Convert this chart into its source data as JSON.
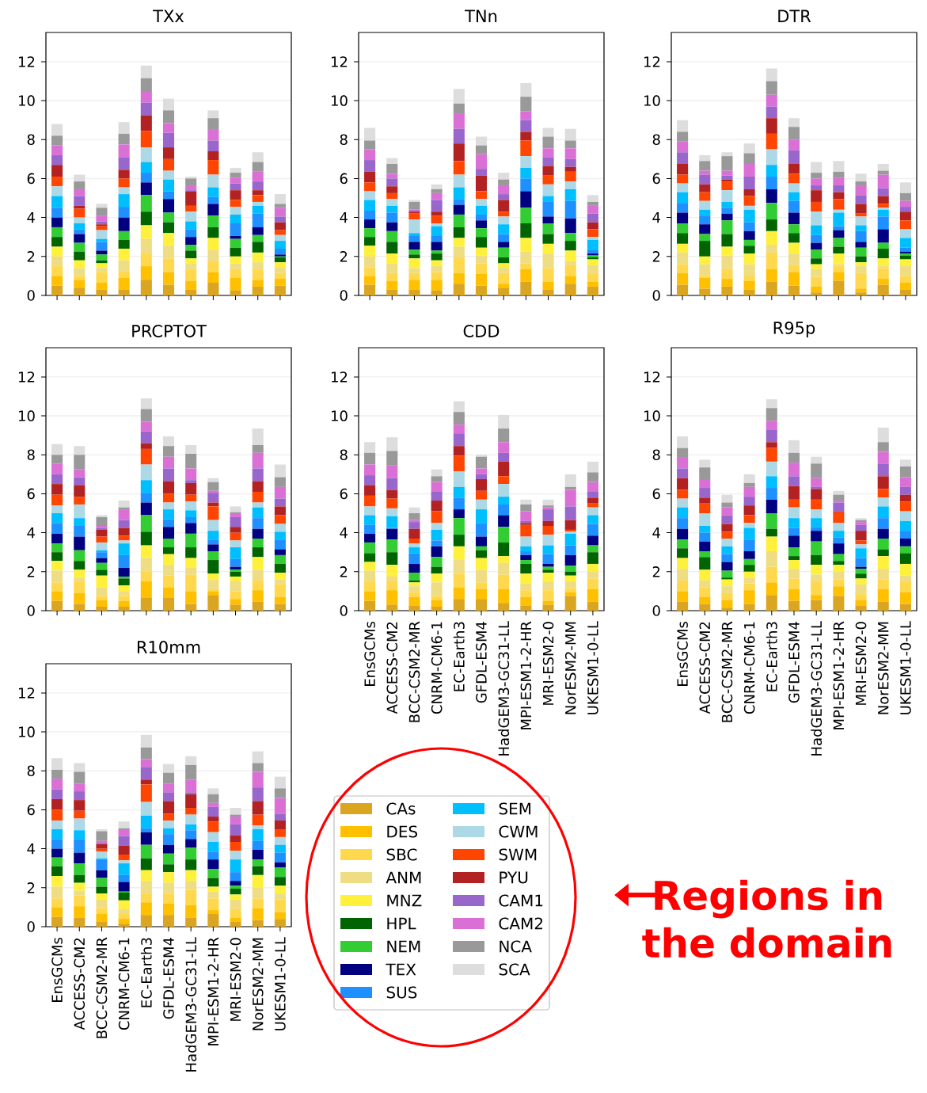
{
  "chart_data": [
    {
      "type": "bar",
      "title": "TXx",
      "stacked": true,
      "grid": "y",
      "ylim": [
        0,
        13.5
      ],
      "yticks": [
        0,
        2,
        4,
        6,
        8,
        10,
        12
      ],
      "categories": [
        null,
        null,
        null,
        null,
        null,
        null,
        null,
        null,
        null,
        null,
        null
      ],
      "series": [
        {
          "color": "#daa520",
          "values": [
            0.5,
            0.4,
            0.3,
            0.3,
            0.8,
            0.55,
            0.3,
            0.65,
            0.25,
            0.45,
            0.5
          ]
        },
        {
          "color": "#ffc000",
          "values": [
            0.5,
            0.4,
            0.35,
            0.6,
            0.7,
            0.65,
            0.45,
            0.55,
            0.65,
            0.35,
            0.35
          ]
        },
        {
          "color": "#ffd84d",
          "values": [
            0.5,
            0.2,
            0.55,
            0.35,
            0.65,
            0.7,
            0.55,
            0.55,
            0.45,
            0.5,
            0.3
          ]
        },
        {
          "color": "#eedd82",
          "values": [
            0.5,
            0.4,
            0.2,
            0.55,
            0.75,
            0.65,
            0.35,
            0.6,
            0.3,
            0.4,
            0.3
          ]
        },
        {
          "color": "#fff03c",
          "values": [
            0.5,
            0.4,
            0.25,
            0.6,
            0.7,
            0.65,
            0.25,
            0.6,
            0.35,
            0.5,
            0.25
          ]
        },
        {
          "color": "#006400",
          "values": [
            0.5,
            0.45,
            0.15,
            0.45,
            0.7,
            0.55,
            0.4,
            0.55,
            0.45,
            0.55,
            0.25
          ]
        },
        {
          "color": "#32cd32",
          "values": [
            0.5,
            0.45,
            0.3,
            0.45,
            0.85,
            0.5,
            0.3,
            0.6,
            0.45,
            0.35,
            0.05
          ]
        },
        {
          "color": "#000080",
          "values": [
            0.5,
            0.45,
            0.2,
            0.7,
            0.65,
            0.7,
            0.4,
            0.6,
            0.15,
            0.4,
            0.1
          ]
        },
        {
          "color": "#1e90ff",
          "values": [
            0.5,
            0.25,
            0.45,
            0.55,
            0.5,
            0.4,
            0.4,
            0.35,
            0.65,
            0.7,
            0.3
          ]
        },
        {
          "color": "#00bfff",
          "values": [
            0.6,
            0.3,
            0.15,
            0.65,
            0.55,
            0.6,
            0.4,
            0.5,
            0.45,
            0.4,
            0.4
          ]
        },
        {
          "color": "#add8e6",
          "values": [
            0.5,
            0.3,
            0.45,
            0.35,
            0.75,
            0.45,
            0.5,
            0.65,
            0.4,
            0.2,
            0.3
          ]
        },
        {
          "color": "#ff4500",
          "values": [
            0.5,
            0.45,
            0.2,
            0.45,
            0.85,
            0.6,
            0.3,
            0.75,
            0.35,
            0.35,
            0.25
          ]
        },
        {
          "color": "#b22222",
          "values": [
            0.6,
            0.15,
            0.1,
            0.45,
            0.8,
            0.6,
            0.75,
            0.45,
            0.5,
            0.25,
            0.4
          ]
        },
        {
          "color": "#9966cc",
          "values": [
            0.5,
            0.5,
            0.15,
            0.65,
            0.65,
            0.75,
            0.05,
            0.55,
            0.35,
            0.45,
            0.3
          ]
        },
        {
          "color": "#da70d6",
          "values": [
            0.5,
            0.35,
            0.3,
            0.65,
            0.55,
            0.5,
            0.25,
            0.55,
            0.3,
            0.5,
            0.45
          ]
        },
        {
          "color": "#999999",
          "values": [
            0.5,
            0.4,
            0.4,
            0.55,
            0.7,
            0.65,
            0.35,
            0.6,
            0.25,
            0.5,
            0.2
          ]
        },
        {
          "color": "#dddddd",
          "values": [
            0.6,
            0.35,
            0.2,
            0.6,
            0.65,
            0.6,
            0.1,
            0.4,
            0.25,
            0.5,
            0.5
          ]
        }
      ]
    },
    {
      "type": "bar",
      "title": "TNn",
      "stacked": true,
      "grid": "y",
      "ylim": [
        0,
        13.5
      ],
      "yticks": [
        0,
        2,
        4,
        6,
        8,
        10,
        12
      ],
      "categories": [
        null,
        null,
        null,
        null,
        null,
        null,
        null,
        null,
        null,
        null,
        null
      ],
      "series": [
        {
          "color": "#daa520",
          "values": [
            0.55,
            0.3,
            0.3,
            0.25,
            0.6,
            0.5,
            0.4,
            0.7,
            0.3,
            0.6,
            0.45
          ]
        },
        {
          "color": "#ffc000",
          "values": [
            0.45,
            0.45,
            0.5,
            0.55,
            0.55,
            0.6,
            0.2,
            0.65,
            0.4,
            0.4,
            0.25
          ]
        },
        {
          "color": "#ffd84d",
          "values": [
            0.45,
            0.4,
            0.35,
            0.4,
            0.8,
            0.55,
            0.55,
            0.3,
            0.7,
            0.55,
            0.4
          ]
        },
        {
          "color": "#eedd82",
          "values": [
            0.55,
            0.5,
            0.25,
            0.3,
            0.55,
            0.4,
            0.3,
            0.6,
            0.75,
            0.2,
            0.45
          ]
        },
        {
          "color": "#fff03c",
          "values": [
            0.55,
            0.5,
            0.5,
            0.3,
            0.45,
            0.4,
            0.2,
            0.7,
            0.5,
            0.55,
            0.3
          ]
        },
        {
          "color": "#006400",
          "values": [
            0.45,
            0.6,
            0.2,
            0.35,
            0.55,
            0.55,
            0.3,
            0.75,
            0.5,
            0.5,
            0.1
          ]
        },
        {
          "color": "#32cd32",
          "values": [
            0.45,
            0.55,
            0.25,
            0.15,
            0.65,
            0.45,
            0.5,
            0.8,
            0.55,
            0.4,
            0.1
          ]
        },
        {
          "color": "#000080",
          "values": [
            0.45,
            0.45,
            0.4,
            0.45,
            0.5,
            0.4,
            0.3,
            0.85,
            0.35,
            0.75,
            0.1
          ]
        },
        {
          "color": "#1e90ff",
          "values": [
            0.45,
            0.5,
            0.3,
            0.3,
            0.3,
            0.3,
            0.4,
            0.65,
            0.75,
            0.9,
            0.2
          ]
        },
        {
          "color": "#00bfff",
          "values": [
            0.55,
            0.35,
            0.15,
            0.5,
            0.6,
            0.45,
            0.5,
            0.55,
            0.3,
            0.6,
            0.5
          ]
        },
        {
          "color": "#add8e6",
          "values": [
            0.45,
            0.35,
            0.7,
            0.15,
            0.65,
            0.35,
            0.4,
            0.6,
            0.6,
            0.4,
            0.15
          ]
        },
        {
          "color": "#ff4500",
          "values": [
            0.45,
            0.3,
            0.3,
            0.4,
            0.7,
            0.4,
            0.25,
            0.8,
            0.45,
            0.5,
            0.4
          ]
        },
        {
          "color": "#b22222",
          "values": [
            0.55,
            0.35,
            0.1,
            0.2,
            0.9,
            0.8,
            0.6,
            0.45,
            0.5,
            0.25,
            0.35
          ]
        },
        {
          "color": "#9966cc",
          "values": [
            0.6,
            0.4,
            0.05,
            0.6,
            0.75,
            0.35,
            0.3,
            0.6,
            0.45,
            0.4,
            0.45
          ]
        },
        {
          "color": "#da70d6",
          "values": [
            0.55,
            0.25,
            0.05,
            0.35,
            0.8,
            0.75,
            0.45,
            0.45,
            0.45,
            0.55,
            0.4
          ]
        },
        {
          "color": "#999999",
          "values": [
            0.45,
            0.5,
            0.4,
            0.2,
            0.5,
            0.45,
            0.3,
            0.75,
            0.6,
            0.4,
            0.2
          ]
        },
        {
          "color": "#dddddd",
          "values": [
            0.65,
            0.3,
            0.1,
            0.25,
            0.75,
            0.45,
            0.35,
            0.7,
            0.45,
            0.6,
            0.35
          ]
        }
      ]
    },
    {
      "type": "bar",
      "title": "DTR",
      "stacked": true,
      "grid": "y",
      "ylim": [
        0,
        13.5
      ],
      "yticks": [
        0,
        2,
        4,
        6,
        8,
        10,
        12
      ],
      "categories": [
        null,
        null,
        null,
        null,
        null,
        null,
        null,
        null,
        null,
        null,
        null
      ],
      "series": [
        {
          "color": "#daa520",
          "values": [
            0.55,
            0.35,
            0.45,
            0.3,
            0.7,
            0.5,
            0.15,
            0.75,
            0.15,
            0.55,
            0.3
          ]
        },
        {
          "color": "#ffc000",
          "values": [
            0.6,
            0.55,
            0.4,
            0.45,
            0.65,
            0.7,
            0.3,
            0.45,
            0.2,
            0.3,
            0.35
          ]
        },
        {
          "color": "#ffd84d",
          "values": [
            0.45,
            0.1,
            0.5,
            0.3,
            0.85,
            0.35,
            0.5,
            0.3,
            0.8,
            0.55,
            0.35
          ]
        },
        {
          "color": "#eedd82",
          "values": [
            0.6,
            0.6,
            0.7,
            0.55,
            0.4,
            0.6,
            0.4,
            0.1,
            0.35,
            0.1,
            0.5
          ]
        },
        {
          "color": "#fff03c",
          "values": [
            0.45,
            0.4,
            0.45,
            0.55,
            0.7,
            0.55,
            0.25,
            0.55,
            0.2,
            0.4,
            0.35
          ]
        },
        {
          "color": "#006400",
          "values": [
            0.55,
            0.8,
            0.65,
            0.4,
            0.6,
            0.5,
            0.3,
            0.35,
            0.3,
            0.5,
            0.2
          ]
        },
        {
          "color": "#32cd32",
          "values": [
            0.5,
            0.35,
            0.7,
            0.3,
            0.85,
            0.45,
            0.45,
            0.45,
            0.45,
            0.3,
            0.1
          ]
        },
        {
          "color": "#000080",
          "values": [
            0.55,
            0.5,
            0.35,
            0.45,
            0.7,
            0.6,
            0.35,
            0.4,
            0.3,
            0.7,
            0.1
          ]
        },
        {
          "color": "#1e90ff",
          "values": [
            0.5,
            0.45,
            0.3,
            0.45,
            0.65,
            0.6,
            0.4,
            0.2,
            0.55,
            0.65,
            0.2
          ]
        },
        {
          "color": "#00bfff",
          "values": [
            0.55,
            0.3,
            0.3,
            0.65,
            0.6,
            0.45,
            0.5,
            0.7,
            0.3,
            0.35,
            0.5
          ]
        },
        {
          "color": "#add8e6",
          "values": [
            0.45,
            0.45,
            0.6,
            0.2,
            0.8,
            0.45,
            0.7,
            0.15,
            0.45,
            0.1,
            0.45
          ]
        },
        {
          "color": "#ff4500",
          "values": [
            0.45,
            0.45,
            0.45,
            0.5,
            0.8,
            0.5,
            0.5,
            0.55,
            0.15,
            0.2,
            0.45
          ]
        },
        {
          "color": "#b22222",
          "values": [
            0.55,
            0.4,
            0.1,
            0.35,
            0.8,
            0.5,
            0.6,
            0.35,
            0.5,
            0.4,
            0.45
          ]
        },
        {
          "color": "#9966cc",
          "values": [
            0.6,
            0.5,
            0.2,
            0.65,
            0.6,
            0.7,
            0.25,
            0.35,
            0.45,
            0.4,
            0.25
          ]
        },
        {
          "color": "#da70d6",
          "values": [
            0.55,
            0.2,
            0.25,
            0.65,
            0.6,
            0.55,
            0.35,
            0.4,
            0.5,
            0.7,
            0.3
          ]
        },
        {
          "color": "#999999",
          "values": [
            0.5,
            0.5,
            0.75,
            0.55,
            0.7,
            0.65,
            0.3,
            0.3,
            0.2,
            0.2,
            0.4
          ]
        },
        {
          "color": "#dddddd",
          "values": [
            0.6,
            0.3,
            0.2,
            0.5,
            0.65,
            0.45,
            0.55,
            0.55,
            0.4,
            0.35,
            0.55
          ]
        }
      ]
    },
    {
      "type": "bar",
      "title": "PRCPTOT",
      "stacked": true,
      "grid": "y",
      "ylim": [
        0,
        13.5
      ],
      "yticks": [
        0,
        2,
        4,
        6,
        8,
        10,
        12
      ],
      "categories": [
        null,
        null,
        null,
        null,
        null,
        null,
        null,
        null,
        null,
        null,
        null
      ],
      "series": [
        {
          "color": "#daa520",
          "values": [
            0.5,
            0.35,
            0.2,
            0.2,
            0.65,
            0.65,
            0.35,
            0.8,
            0.3,
            0.45,
            0.35
          ]
        },
        {
          "color": "#ffc000",
          "values": [
            0.5,
            0.55,
            0.35,
            0.3,
            0.85,
            0.55,
            0.65,
            0.2,
            0.3,
            0.6,
            0.35
          ]
        },
        {
          "color": "#ffd84d",
          "values": [
            0.45,
            0.6,
            0.2,
            0.25,
            0.5,
            0.6,
            0.85,
            0.1,
            0.4,
            0.5,
            0.65
          ]
        },
        {
          "color": "#eedd82",
          "values": [
            0.6,
            0.2,
            0.45,
            0.25,
            0.7,
            0.55,
            0.35,
            0.5,
            0.5,
            0.55,
            0.25
          ]
        },
        {
          "color": "#fff03c",
          "values": [
            0.5,
            0.4,
            0.6,
            0.3,
            0.65,
            0.55,
            0.5,
            0.3,
            0.25,
            0.65,
            0.35
          ]
        },
        {
          "color": "#006400",
          "values": [
            0.45,
            0.45,
            0.3,
            0.35,
            0.7,
            0.35,
            0.55,
            0.7,
            0.25,
            0.5,
            0.45
          ]
        },
        {
          "color": "#32cd32",
          "values": [
            0.45,
            0.55,
            0.35,
            0.1,
            0.85,
            0.45,
            0.7,
            0.45,
            0.1,
            0.45,
            0.45
          ]
        },
        {
          "color": "#000080",
          "values": [
            0.5,
            0.7,
            0.25,
            0.45,
            0.65,
            0.6,
            0.55,
            0.35,
            0.15,
            0.5,
            0.3
          ]
        },
        {
          "color": "#1e90ff",
          "values": [
            0.55,
            0.55,
            0.3,
            0.65,
            0.5,
            0.4,
            0.3,
            0.25,
            0.4,
            0.55,
            0.5
          ]
        },
        {
          "color": "#00bfff",
          "values": [
            0.5,
            0.4,
            0.1,
            0.6,
            0.65,
            0.5,
            0.35,
            0.45,
            0.6,
            0.55,
            0.4
          ]
        },
        {
          "color": "#add8e6",
          "values": [
            0.4,
            0.7,
            0.4,
            0.15,
            0.8,
            0.35,
            0.45,
            0.55,
            0.35,
            0.25,
            0.4
          ]
        },
        {
          "color": "#ff4500",
          "values": [
            0.55,
            0.4,
            0.3,
            0.25,
            0.8,
            0.45,
            0.35,
            0.7,
            0.4,
            0.55,
            0.45
          ]
        },
        {
          "color": "#b22222",
          "values": [
            0.55,
            0.6,
            0.35,
            0.4,
            0.3,
            0.65,
            0.6,
            0.2,
            0.3,
            0.55,
            0.45
          ]
        },
        {
          "color": "#9966cc",
          "values": [
            0.5,
            0.4,
            0.1,
            0.4,
            0.6,
            0.65,
            0.15,
            0.5,
            0.5,
            0.65,
            0.4
          ]
        },
        {
          "color": "#da70d6",
          "values": [
            0.55,
            0.4,
            0.1,
            0.55,
            0.5,
            0.6,
            0.6,
            0.1,
            0.2,
            0.8,
            0.6
          ]
        },
        {
          "color": "#999999",
          "values": [
            0.45,
            0.75,
            0.45,
            0.1,
            0.65,
            0.55,
            0.75,
            0.45,
            0.05,
            0.4,
            0.5
          ]
        },
        {
          "color": "#dddddd",
          "values": [
            0.55,
            0.45,
            0.1,
            0.35,
            0.55,
            0.5,
            0.45,
            0.2,
            0.3,
            0.85,
            0.65
          ]
        }
      ]
    },
    {
      "type": "bar",
      "title": "CDD",
      "stacked": true,
      "grid": "y",
      "ylim": [
        0,
        13.5
      ],
      "yticks": [
        0,
        2,
        4,
        6,
        8,
        10,
        12
      ],
      "categories": [
        "EnsGCMs",
        "ACCESS-CM2",
        "BCC-CSM2-MR",
        "CNRM-CM6-1",
        "EC-Earth3",
        "GFDL-ESM4",
        "HadGEM3-GC31-LL",
        "MPI-ESM1-2-HR",
        "MRI-ESM2-0",
        "NorESM2-MM",
        "UKESM1-0-LL"
      ],
      "series": [
        {
          "color": "#daa520",
          "values": [
            0.5,
            0.3,
            0.25,
            0.2,
            0.6,
            0.6,
            0.4,
            0.25,
            0.3,
            0.75,
            0.45
          ]
        },
        {
          "color": "#ffc000",
          "values": [
            0.5,
            0.75,
            0.45,
            0.35,
            0.6,
            0.5,
            0.7,
            0.45,
            0.2,
            0.2,
            0.65
          ]
        },
        {
          "color": "#ffd84d",
          "values": [
            0.5,
            0.5,
            0.25,
            0.2,
            0.7,
            0.35,
            0.75,
            0.35,
            0.55,
            0.2,
            0.55
          ]
        },
        {
          "color": "#eedd82",
          "values": [
            0.55,
            0.2,
            0.3,
            0.7,
            0.7,
            0.65,
            0.6,
            0.35,
            0.45,
            0.35,
            0.35
          ]
        },
        {
          "color": "#fff03c",
          "values": [
            0.45,
            0.6,
            0.2,
            0.45,
            0.7,
            0.6,
            0.35,
            0.5,
            0.45,
            0.3,
            0.4
          ]
        },
        {
          "color": "#006400",
          "values": [
            0.45,
            0.65,
            0.1,
            0.35,
            0.6,
            0.4,
            0.7,
            0.5,
            0.15,
            0.2,
            0.6
          ]
        },
        {
          "color": "#32cd32",
          "values": [
            0.55,
            0.65,
            0.4,
            0.5,
            0.85,
            0.2,
            0.8,
            0.2,
            0.15,
            0.3,
            0.35
          ]
        },
        {
          "color": "#000080",
          "values": [
            0.45,
            0.55,
            0.45,
            0.55,
            0.45,
            0.5,
            0.6,
            0.25,
            0.15,
            0.55,
            0.5
          ]
        },
        {
          "color": "#1e90ff",
          "values": [
            0.45,
            0.05,
            0.55,
            0.3,
            0.6,
            0.7,
            0.55,
            0.2,
            0.5,
            0.5,
            0.6
          ]
        },
        {
          "color": "#00bfff",
          "values": [
            0.5,
            0.6,
            0.3,
            0.55,
            0.55,
            0.7,
            0.4,
            0.25,
            0.45,
            0.6,
            0.45
          ]
        },
        {
          "color": "#add8e6",
          "values": [
            0.45,
            0.4,
            0.2,
            0.35,
            0.8,
            0.5,
            0.65,
            0.5,
            0.55,
            0.1,
            0.4
          ]
        },
        {
          "color": "#ff4500",
          "values": [
            0.55,
            0.5,
            0.25,
            0.6,
            0.8,
            0.45,
            0.4,
            0.6,
            0.45,
            0.1,
            0.2
          ]
        },
        {
          "color": "#b22222",
          "values": [
            0.55,
            0.45,
            0.5,
            0.55,
            0.5,
            0.6,
            0.75,
            0.1,
            0.25,
            0.5,
            0.3
          ]
        },
        {
          "color": "#9966cc",
          "values": [
            0.5,
            0.6,
            0.35,
            0.45,
            0.65,
            0.25,
            0.45,
            0.1,
            0.6,
            0.7,
            0.3
          ]
        },
        {
          "color": "#da70d6",
          "values": [
            0.55,
            0.65,
            0.1,
            0.5,
            0.45,
            0.3,
            0.55,
            0.5,
            0.1,
            0.85,
            0.5
          ]
        },
        {
          "color": "#999999",
          "values": [
            0.6,
            0.75,
            0.35,
            0.3,
            0.65,
            0.6,
            0.7,
            0.35,
            0.1,
            0.15,
            0.5
          ]
        },
        {
          "color": "#dddddd",
          "values": [
            0.55,
            0.7,
            0.3,
            0.35,
            0.55,
            0.1,
            0.7,
            0.25,
            0.3,
            0.65,
            0.55
          ]
        }
      ]
    },
    {
      "type": "bar",
      "title": "R95p",
      "stacked": true,
      "grid": "y",
      "ylim": [
        0,
        13.5
      ],
      "yticks": [
        0,
        2,
        4,
        6,
        8,
        10,
        12
      ],
      "categories": [
        "EnsGCMs",
        "ACCESS-CM2",
        "BCC-CSM2-MR",
        "CNRM-CM6-1",
        "EC-Earth3",
        "GFDL-ESM4",
        "HadGEM3-GC31-LL",
        "MPI-ESM1-2-HR",
        "MRI-ESM2-0",
        "NorESM2-MM",
        "UKESM1-0-LL"
      ],
      "series": [
        {
          "color": "#daa520",
          "values": [
            0.45,
            0.35,
            0.15,
            0.35,
            0.8,
            0.5,
            0.55,
            0.75,
            0.25,
            0.45,
            0.35
          ]
        },
        {
          "color": "#ffc000",
          "values": [
            0.55,
            0.35,
            0.4,
            0.7,
            0.65,
            0.6,
            0.25,
            0.5,
            0.3,
            0.65,
            0.6
          ]
        },
        {
          "color": "#ffd84d",
          "values": [
            0.55,
            0.5,
            0.35,
            0.35,
            0.8,
            0.55,
            0.7,
            0.35,
            0.3,
            0.5,
            0.55
          ]
        },
        {
          "color": "#eedd82",
          "values": [
            0.6,
            0.35,
            0.35,
            0.3,
            0.8,
            0.5,
            0.35,
            0.4,
            0.5,
            0.55,
            0.3
          ]
        },
        {
          "color": "#fff03c",
          "values": [
            0.55,
            0.55,
            0.35,
            0.3,
            0.75,
            0.45,
            0.5,
            0.35,
            0.3,
            0.65,
            0.6
          ]
        },
        {
          "color": "#006400",
          "values": [
            0.5,
            0.65,
            0.1,
            0.35,
            0.4,
            0.2,
            0.5,
            0.2,
            0.25,
            0.35,
            0.55
          ]
        },
        {
          "color": "#32cd32",
          "values": [
            0.45,
            0.3,
            0.35,
            0.3,
            0.8,
            0.45,
            0.7,
            0.35,
            0.25,
            0.55,
            0.35
          ]
        },
        {
          "color": "#000080",
          "values": [
            0.55,
            0.5,
            0.45,
            0.4,
            0.7,
            0.6,
            0.55,
            0.55,
            0.1,
            0.5,
            0.4
          ]
        },
        {
          "color": "#1e90ff",
          "values": [
            0.55,
            0.45,
            0.4,
            0.6,
            0.6,
            0.4,
            0.2,
            0.3,
            0.45,
            0.55,
            0.4
          ]
        },
        {
          "color": "#00bfff",
          "values": [
            0.55,
            0.35,
            0.4,
            0.6,
            0.6,
            0.5,
            0.45,
            0.35,
            0.5,
            0.6,
            0.5
          ]
        },
        {
          "color": "#add8e6",
          "values": [
            0.45,
            0.65,
            0.4,
            0.25,
            0.75,
            0.55,
            0.45,
            0.4,
            0.2,
            0.45,
            0.5
          ]
        },
        {
          "color": "#ff4500",
          "values": [
            0.45,
            0.5,
            0.35,
            0.4,
            0.7,
            0.4,
            0.5,
            0.55,
            0.2,
            0.45,
            0.5
          ]
        },
        {
          "color": "#b22222",
          "values": [
            0.6,
            0.3,
            0.4,
            0.5,
            0.3,
            0.7,
            0.55,
            0.05,
            0.5,
            0.65,
            0.35
          ]
        },
        {
          "color": "#9966cc",
          "values": [
            0.5,
            0.5,
            0.45,
            0.45,
            0.65,
            0.5,
            0.1,
            0.45,
            0.3,
            0.65,
            0.4
          ]
        },
        {
          "color": "#da70d6",
          "values": [
            0.55,
            0.45,
            0.4,
            0.5,
            0.45,
            0.7,
            0.45,
            0.1,
            0.15,
            0.6,
            0.5
          ]
        },
        {
          "color": "#999999",
          "values": [
            0.5,
            0.6,
            0.25,
            0.2,
            0.65,
            0.5,
            0.75,
            0.3,
            0.1,
            0.5,
            0.55
          ]
        },
        {
          "color": "#dddddd",
          "values": [
            0.6,
            0.4,
            0.4,
            0.45,
            0.45,
            0.65,
            0.35,
            0.2,
            0.1,
            0.75,
            0.35
          ]
        }
      ]
    },
    {
      "type": "bar",
      "title": "R10mm",
      "stacked": true,
      "grid": "y",
      "ylim": [
        0,
        13.5
      ],
      "yticks": [
        0,
        2,
        4,
        6,
        8,
        10,
        12
      ],
      "legend": "right",
      "annotations": [
        "Regions in the domain"
      ],
      "categories": [
        "EnsGCMs",
        "ACCESS-CM2",
        "BCC-CSM2-MR",
        "CNRM-CM6-1",
        "EC-Earth3",
        "GFDL-ESM4",
        "HadGEM3-GC31-LL",
        "MPI-ESM1-2-HR",
        "MRI-ESM2-0",
        "NorESM2-MM",
        "UKESM1-0-LL"
      ],
      "series": [
        {
          "name": "CAs",
          "color": "#daa520",
          "values": [
            0.5,
            0.45,
            0.25,
            0.15,
            0.6,
            0.6,
            0.45,
            0.65,
            0.25,
            0.35,
            0.4
          ]
        },
        {
          "name": "DES",
          "color": "#ffc000",
          "values": [
            0.5,
            0.6,
            0.4,
            0.25,
            0.65,
            0.6,
            0.65,
            0.2,
            0.2,
            0.6,
            0.35
          ]
        },
        {
          "name": "SBC",
          "color": "#ffd84d",
          "values": [
            0.45,
            0.55,
            0.3,
            0.25,
            0.45,
            0.5,
            0.8,
            0.6,
            0.45,
            0.5,
            0.65
          ]
        },
        {
          "name": "ANM",
          "color": "#eedd82",
          "values": [
            0.6,
            0.25,
            0.45,
            0.25,
            0.65,
            0.55,
            0.45,
            0.35,
            0.5,
            0.55,
            0.3
          ]
        },
        {
          "name": "MNZ",
          "color": "#fff03c",
          "values": [
            0.55,
            0.4,
            0.3,
            0.45,
            0.55,
            0.55,
            0.55,
            0.25,
            0.25,
            0.65,
            0.4
          ]
        },
        {
          "name": "HPL",
          "color": "#006400",
          "values": [
            0.5,
            0.4,
            0.35,
            0.4,
            0.6,
            0.4,
            0.55,
            0.45,
            0.3,
            0.45,
            0.45
          ]
        },
        {
          "name": "NEM",
          "color": "#32cd32",
          "values": [
            0.45,
            0.6,
            0.45,
            0.05,
            0.7,
            0.55,
            0.6,
            0.45,
            0.15,
            0.35,
            0.5
          ]
        },
        {
          "name": "TEX",
          "color": "#000080",
          "values": [
            0.45,
            0.55,
            0.4,
            0.5,
            0.65,
            0.45,
            0.45,
            0.5,
            0.25,
            0.5,
            0.25
          ]
        },
        {
          "name": "SUS",
          "color": "#1e90ff",
          "values": [
            0.5,
            0.7,
            0.55,
            0.35,
            0.2,
            0.55,
            0.45,
            0.4,
            0.45,
            0.45,
            0.5
          ]
        },
        {
          "name": "SEM",
          "color": "#00bfff",
          "values": [
            0.5,
            0.45,
            0.05,
            0.6,
            0.65,
            0.3,
            0.3,
            0.5,
            0.65,
            0.6,
            0.4
          ]
        },
        {
          "name": "CWM",
          "color": "#add8e6",
          "values": [
            0.45,
            0.6,
            0.35,
            0.15,
            0.7,
            0.4,
            0.5,
            0.5,
            0.45,
            0.2,
            0.4
          ]
        },
        {
          "name": "SWM",
          "color": "#ff4500",
          "values": [
            0.55,
            0.4,
            0.15,
            0.3,
            0.9,
            0.35,
            0.35,
            0.55,
            0.45,
            0.55,
            0.4
          ]
        },
        {
          "name": "PYU",
          "color": "#b22222",
          "values": [
            0.55,
            0.55,
            0.25,
            0.45,
            0.25,
            0.65,
            0.7,
            0.25,
            0.35,
            0.7,
            0.45
          ]
        },
        {
          "name": "CAM1",
          "color": "#9966cc",
          "values": [
            0.5,
            0.45,
            0.05,
            0.5,
            0.65,
            0.45,
            0.1,
            0.5,
            0.55,
            0.7,
            0.35
          ]
        },
        {
          "name": "CAM2",
          "color": "#da70d6",
          "values": [
            0.55,
            0.4,
            0.1,
            0.35,
            0.4,
            0.45,
            0.65,
            0.2,
            0.4,
            0.8,
            0.8
          ]
        },
        {
          "name": "NCA",
          "color": "#999999",
          "values": [
            0.45,
            0.6,
            0.5,
            0.05,
            0.6,
            0.55,
            0.75,
            0.45,
            0.1,
            0.45,
            0.5
          ]
        },
        {
          "name": "SCA",
          "color": "#dddddd",
          "values": [
            0.6,
            0.45,
            0.1,
            0.35,
            0.65,
            0.45,
            0.45,
            0.3,
            0.35,
            0.6,
            0.6
          ]
        }
      ]
    }
  ]
}
